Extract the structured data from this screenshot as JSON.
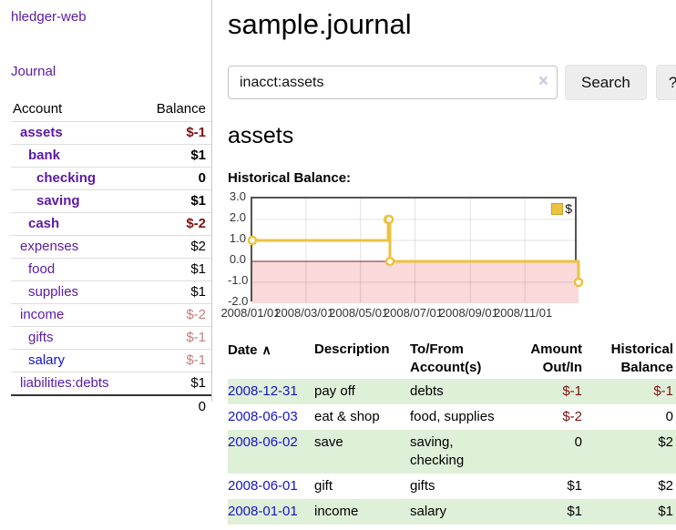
{
  "sidebar": {
    "brand": "hledger-web",
    "nav": {
      "journal": "Journal"
    },
    "accounts_table": {
      "headers": {
        "account": "Account",
        "balance": "Balance"
      },
      "rows": [
        {
          "name": "assets",
          "balance": "$-1",
          "depth": 1,
          "bold": true,
          "balance_style": "neg-strong"
        },
        {
          "name": "bank",
          "balance": "$1",
          "depth": 2,
          "bold": true,
          "balance_style": "normal"
        },
        {
          "name": "checking",
          "balance": "0",
          "depth": 3,
          "bold": true,
          "balance_style": "normal"
        },
        {
          "name": "saving",
          "balance": "$1",
          "depth": 3,
          "bold": true,
          "balance_style": "normal"
        },
        {
          "name": "cash",
          "balance": "$-2",
          "depth": 2,
          "bold": true,
          "balance_style": "neg-strong"
        },
        {
          "name": "expenses",
          "balance": "$2",
          "depth": 1,
          "bold": false,
          "balance_style": "normal"
        },
        {
          "name": "food",
          "balance": "$1",
          "depth": 2,
          "bold": false,
          "balance_style": "normal"
        },
        {
          "name": "supplies",
          "balance": "$1",
          "depth": 2,
          "bold": false,
          "balance_style": "normal"
        },
        {
          "name": "income",
          "balance": "$-2",
          "depth": 1,
          "bold": false,
          "balance_style": "neg-soft"
        },
        {
          "name": "gifts",
          "balance": "$-1",
          "depth": 2,
          "bold": false,
          "balance_style": "neg-soft"
        },
        {
          "name": "salary",
          "balance": "$-1",
          "depth": 2,
          "bold": false,
          "balance_style": "neg-soft",
          "link_color": "blue"
        },
        {
          "name": "liabilities:debts",
          "balance": "$1",
          "depth": 1,
          "bold": false,
          "balance_style": "normal"
        }
      ],
      "total": "0"
    }
  },
  "header": {
    "title": "sample.journal"
  },
  "search": {
    "query": "inacct:assets",
    "clear_icon": "×",
    "search_label": "Search",
    "help_label": "?"
  },
  "account_view": {
    "heading": "assets",
    "chart_label": "Historical Balance:"
  },
  "chart_data": {
    "type": "line",
    "title": "Historical Balance",
    "series": [
      {
        "name": "$",
        "step": true,
        "points": [
          [
            "2008-01-01",
            1
          ],
          [
            "2008-06-01",
            2
          ],
          [
            "2008-06-02",
            2
          ],
          [
            "2008-06-03",
            0
          ],
          [
            "2008-12-31",
            -1
          ]
        ],
        "color": "#edc240"
      }
    ],
    "x_range": [
      "2008-01-01",
      "2008-12-31"
    ],
    "ylim": [
      -2,
      3
    ],
    "yticks": [
      3,
      2,
      1,
      0,
      -1,
      -2
    ],
    "ytick_labels": [
      "3.0",
      "2.0",
      "1.0",
      "0.0",
      "-1.0",
      "-2.0"
    ],
    "xtick_labels": [
      "2008/01/01",
      "2008/03/01",
      "2008/05/01",
      "2008/07/01",
      "2008/09/01",
      "2008/11/01"
    ],
    "legend": "$",
    "legend_position": "top-right",
    "grid": true,
    "colors": {
      "line": "#edc240",
      "marker_fill": "#ffffff",
      "negative_region": "#f9d9d9",
      "zero_line": "#8b1a1a",
      "border": "#545454"
    }
  },
  "register_table": {
    "headers": {
      "date": "Date",
      "sort_arrow": "∧",
      "description": "Description",
      "accounts": "To/From Account(s)",
      "amount": "Amount Out/In",
      "balance": "Historical Balance"
    },
    "rows": [
      {
        "date": "2008-12-31",
        "description": "pay off",
        "accounts": "debts",
        "amount": "$-1",
        "amount_neg": true,
        "balance": "$-1",
        "balance_neg": true
      },
      {
        "date": "2008-06-03",
        "description": "eat & shop",
        "accounts": "food, supplies",
        "amount": "$-2",
        "amount_neg": true,
        "balance": "0",
        "balance_neg": false
      },
      {
        "date": "2008-06-02",
        "description": "save",
        "accounts": "saving, checking",
        "amount": "0",
        "amount_neg": false,
        "balance": "$2",
        "balance_neg": false
      },
      {
        "date": "2008-06-01",
        "description": "gift",
        "accounts": "gifts",
        "amount": "$1",
        "amount_neg": false,
        "balance": "$2",
        "balance_neg": false
      },
      {
        "date": "2008-01-01",
        "description": "income",
        "accounts": "salary",
        "amount": "$1",
        "amount_neg": false,
        "balance": "$1",
        "balance_neg": false
      }
    ]
  },
  "colors": {
    "link_purple": "#5b1aa5",
    "link_blue": "#1414cc",
    "negative_strong": "#7f1010",
    "negative_soft": "#c47d7d",
    "row_stripe_green": "#dff0d8"
  }
}
